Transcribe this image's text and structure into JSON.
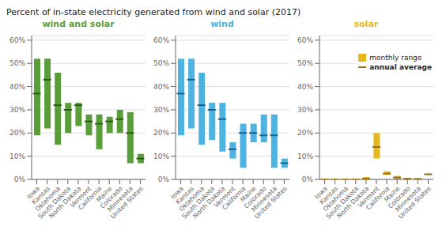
{
  "title": "Percent of in-state electricity generated from wind and solar (2017)",
  "chart_data": [
    {
      "type": "bar",
      "title": "wind and solar",
      "categories": [
        "Iowa",
        "Kansas",
        "Oklahoma",
        "South Dakota",
        "North Dakota",
        "Vermont",
        "California",
        "Maine",
        "Colorado",
        "Minnesota",
        "United States"
      ],
      "ylim": [
        0,
        0.62
      ],
      "yticks": [
        {
          "value": 0,
          "label": "0%"
        },
        {
          "value": 0.1,
          "label": "10%"
        },
        {
          "value": 0.2,
          "label": "20%"
        },
        {
          "value": 0.3,
          "label": "30%"
        },
        {
          "value": 0.4,
          "label": "40%"
        },
        {
          "value": 0.5,
          "label": "50%"
        },
        {
          "value": 0.6,
          "label": "60%"
        }
      ],
      "grid": true,
      "series": [
        {
          "name": "monthly range",
          "type": "bar",
          "color": "#5a9e3a",
          "low": [
            0.19,
            0.22,
            0.15,
            0.2,
            0.23,
            0.19,
            0.13,
            0.2,
            0.2,
            0.07,
            0.07
          ],
          "high": [
            0.52,
            0.52,
            0.46,
            0.33,
            0.33,
            0.28,
            0.28,
            0.27,
            0.3,
            0.29,
            0.11
          ]
        },
        {
          "name": "annual average",
          "type": "scatter",
          "marker": "hline",
          "color": "#2d5a1a",
          "values": [
            0.37,
            0.43,
            0.32,
            0.3,
            0.32,
            0.25,
            0.24,
            0.25,
            0.26,
            0.2,
            0.09
          ]
        }
      ]
    },
    {
      "type": "bar",
      "title": "wind",
      "categories": [
        "Iowa",
        "Kansas",
        "Oklahoma",
        "South Dakota",
        "North Dakota",
        "Vermont",
        "California",
        "Maine",
        "Colorado",
        "Minnesota",
        "United States"
      ],
      "ylim": [
        0,
        0.62
      ],
      "yticks": [
        {
          "value": 0,
          "label": "0%"
        },
        {
          "value": 0.1,
          "label": "10%"
        },
        {
          "value": 0.2,
          "label": "20%"
        },
        {
          "value": 0.3,
          "label": "30%"
        },
        {
          "value": 0.4,
          "label": "40%"
        },
        {
          "value": 0.5,
          "label": "50%"
        },
        {
          "value": 0.6,
          "label": "60%"
        }
      ],
      "grid": true,
      "series": [
        {
          "name": "monthly range",
          "type": "bar",
          "color": "#4db3e0",
          "low": [
            0.19,
            0.22,
            0.15,
            0.17,
            0.12,
            0.09,
            0.05,
            0.16,
            0.16,
            0.05,
            0.05
          ],
          "high": [
            0.52,
            0.52,
            0.46,
            0.33,
            0.33,
            0.16,
            0.24,
            0.24,
            0.28,
            0.28,
            0.09
          ]
        },
        {
          "name": "annual average",
          "type": "scatter",
          "marker": "hline",
          "color": "#1a6090",
          "values": [
            0.37,
            0.43,
            0.32,
            0.3,
            0.26,
            0.13,
            0.2,
            0.2,
            0.19,
            0.19,
            0.07
          ]
        }
      ]
    },
    {
      "type": "bar",
      "title": "solar",
      "categories": [
        "Iowa",
        "Kansas",
        "Oklahoma",
        "South Dakota",
        "North Dakota",
        "Vermont",
        "California",
        "Maine",
        "Colorado",
        "Minnesota",
        "United States"
      ],
      "ylim": [
        0,
        0.62
      ],
      "yticks": [
        {
          "value": 0,
          "label": "0%"
        },
        {
          "value": 0.1,
          "label": "10%"
        },
        {
          "value": 0.2,
          "label": "20%"
        },
        {
          "value": 0.3,
          "label": "30%"
        },
        {
          "value": 0.4,
          "label": "40%"
        },
        {
          "value": 0.5,
          "label": "50%"
        },
        {
          "value": 0.6,
          "label": "60%"
        }
      ],
      "grid": true,
      "legend": "upper right",
      "series": [
        {
          "name": "monthly range",
          "type": "bar",
          "color": "#e6b820",
          "low": [
            0,
            0,
            0,
            0,
            0,
            0.09,
            0.02,
            0.002,
            0.001,
            0.001,
            0.02
          ],
          "high": [
            0.001,
            0.001,
            0.001,
            0.002,
            0.01,
            0.2,
            0.035,
            0.015,
            0.006,
            0.004,
            0.025
          ]
        },
        {
          "name": "annual average",
          "type": "scatter",
          "marker": "hline",
          "color": "#9a7010",
          "values": [
            0,
            0,
            0,
            0,
            0.003,
            0.14,
            0.025,
            0.008,
            0.003,
            0.002,
            0.022
          ]
        }
      ]
    }
  ]
}
